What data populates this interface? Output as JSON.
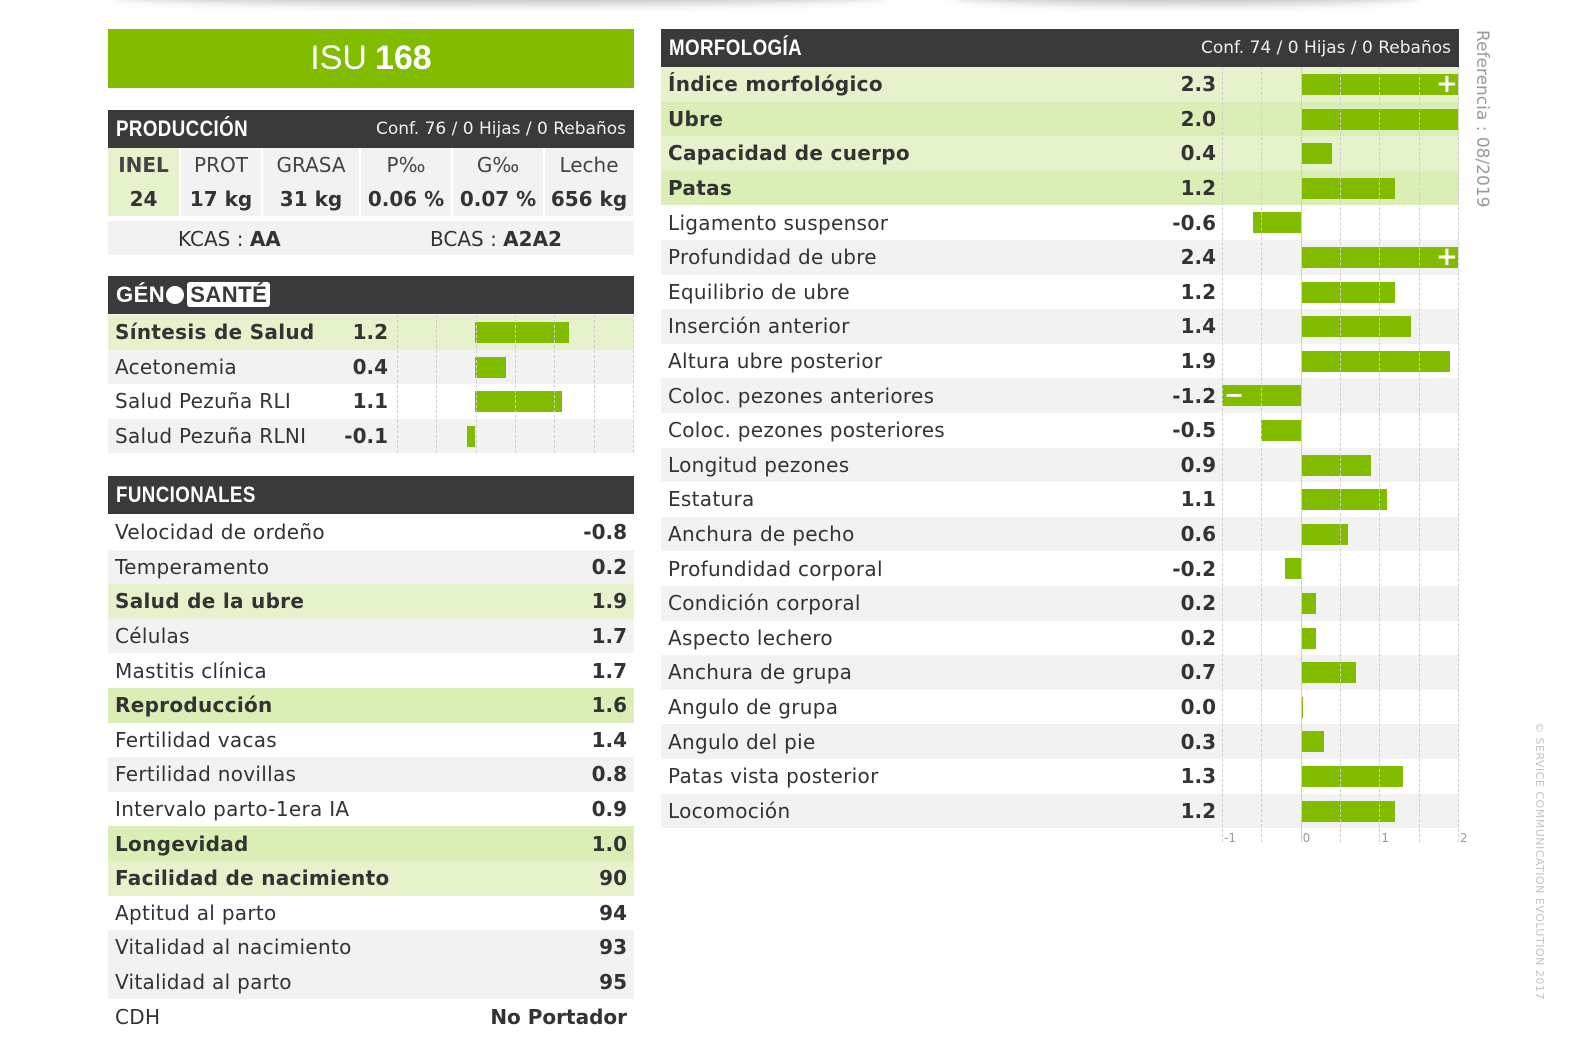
{
  "isu": {
    "label": "ISU",
    "value": "168"
  },
  "produccion": {
    "title": "PRODUCCIÓN",
    "conf": "Conf. 76 / 0 Hijas / 0 Rebaños",
    "headers": [
      "INEL",
      "PROT",
      "GRASA",
      "P‰",
      "G‰",
      "Leche"
    ],
    "values": [
      "24",
      "17 kg",
      "31 kg",
      "0.06 %",
      "0.07 %",
      "656 kg"
    ],
    "kcas_label": "KCAS : ",
    "kcas": "AA",
    "bcas_label": "BCAS : ",
    "bcas": "A2A2"
  },
  "genosante": {
    "logo_text_geno": "GÉN",
    "logo_text_sante": "SANTÉ",
    "rows": [
      {
        "label": "Síntesis de Salud",
        "value": "1.2",
        "num": 1.2,
        "style": "hl"
      },
      {
        "label": "Acetonemia",
        "value": "0.4",
        "num": 0.4,
        "style": "g"
      },
      {
        "label": "Salud Pezuña RLI",
        "value": "1.1",
        "num": 1.1,
        "style": "w"
      },
      {
        "label": "Salud Pezuña RLNI",
        "value": "-0.1",
        "num": -0.1,
        "style": "g"
      }
    ]
  },
  "funcionales": {
    "title": "FUNCIONALES",
    "rows": [
      {
        "label": "Velocidad de ordeño",
        "value": "-0.8",
        "style": "w"
      },
      {
        "label": "Temperamento",
        "value": "0.2",
        "style": "g"
      },
      {
        "label": "Salud de la ubre",
        "value": "1.9",
        "style": "hl"
      },
      {
        "label": "Células",
        "value": "1.7",
        "style": "g"
      },
      {
        "label": "Mastitis clínica",
        "value": "1.7",
        "style": "w"
      },
      {
        "label": "Reproducción",
        "value": "1.6",
        "style": "hl2"
      },
      {
        "label": "Fertilidad vacas",
        "value": "1.4",
        "style": "w"
      },
      {
        "label": "Fertilidad novillas",
        "value": "0.8",
        "style": "g"
      },
      {
        "label": "Intervalo parto-1era IA",
        "value": "0.9",
        "style": "w"
      },
      {
        "label": "Longevidad",
        "value": "1.0",
        "style": "hl2"
      },
      {
        "label": "Facilidad de nacimiento",
        "value": "90",
        "style": "hl"
      },
      {
        "label": "Aptitud al parto",
        "value": "94",
        "style": "w"
      },
      {
        "label": "Vitalidad al nacimiento",
        "value": "93",
        "style": "g"
      },
      {
        "label": "Vitalidad al parto",
        "value": "95",
        "style": "g"
      },
      {
        "label": "CDH",
        "value": "No Portador",
        "style": "w"
      }
    ]
  },
  "morfologia": {
    "title": "MORFOLOGÍA",
    "conf": "Conf. 74 / 0 Hijas / 0 Rebaños",
    "axis_ticks": [
      "-1",
      "0",
      "1",
      "2"
    ],
    "axis_range": [
      -1,
      2
    ],
    "rows": [
      {
        "label": "Índice morfológico",
        "value": "2.3",
        "num": 2.3,
        "style": "hl",
        "marker": "+"
      },
      {
        "label": "Ubre",
        "value": "2.0",
        "num": 2.0,
        "style": "hl2"
      },
      {
        "label": "Capacidad de cuerpo",
        "value": "0.4",
        "num": 0.4,
        "style": "hl"
      },
      {
        "label": "Patas",
        "value": "1.2",
        "num": 1.2,
        "style": "hl2"
      },
      {
        "label": "Ligamento suspensor",
        "value": "-0.6",
        "num": -0.6,
        "style": "w"
      },
      {
        "label": "Profundidad de ubre",
        "value": "2.4",
        "num": 2.4,
        "style": "g",
        "marker": "+"
      },
      {
        "label": "Equilibrio de ubre",
        "value": "1.2",
        "num": 1.2,
        "style": "w"
      },
      {
        "label": "Inserción anterior",
        "value": "1.4",
        "num": 1.4,
        "style": "g"
      },
      {
        "label": "Altura ubre posterior",
        "value": "1.9",
        "num": 1.9,
        "style": "w"
      },
      {
        "label": "Coloc. pezones anteriores",
        "value": "-1.2",
        "num": -1.2,
        "style": "g",
        "marker": "−"
      },
      {
        "label": "Coloc. pezones posteriores",
        "value": "-0.5",
        "num": -0.5,
        "style": "w"
      },
      {
        "label": "Longitud pezones",
        "value": "0.9",
        "num": 0.9,
        "style": "g"
      },
      {
        "label": "Estatura",
        "value": "1.1",
        "num": 1.1,
        "style": "w"
      },
      {
        "label": "Anchura de pecho",
        "value": "0.6",
        "num": 0.6,
        "style": "g"
      },
      {
        "label": "Profundidad corporal",
        "value": "-0.2",
        "num": -0.2,
        "style": "w"
      },
      {
        "label": "Condición corporal",
        "value": "0.2",
        "num": 0.2,
        "style": "g"
      },
      {
        "label": "Aspecto lechero",
        "value": "0.2",
        "num": 0.2,
        "style": "w"
      },
      {
        "label": "Anchura de grupa",
        "value": "0.7",
        "num": 0.7,
        "style": "g"
      },
      {
        "label": "Angulo de grupa",
        "value": "0.0",
        "num": 0.0,
        "style": "w"
      },
      {
        "label": "Angulo del pie",
        "value": "0.3",
        "num": 0.3,
        "style": "g"
      },
      {
        "label": "Patas vista posterior",
        "value": "1.3",
        "num": 1.3,
        "style": "w"
      },
      {
        "label": "Locomoción",
        "value": "1.2",
        "num": 1.2,
        "style": "g"
      }
    ]
  },
  "side": {
    "referencia": "Referencia : 08/2019",
    "copyright": "© SERVICE COMMUNICATION EVOLUTION 2017"
  },
  "colors": {
    "accent": "#82bc00",
    "header": "#3a3a3a",
    "highlight": "#e6f2cc",
    "row_alt": "#f2f2f2"
  }
}
